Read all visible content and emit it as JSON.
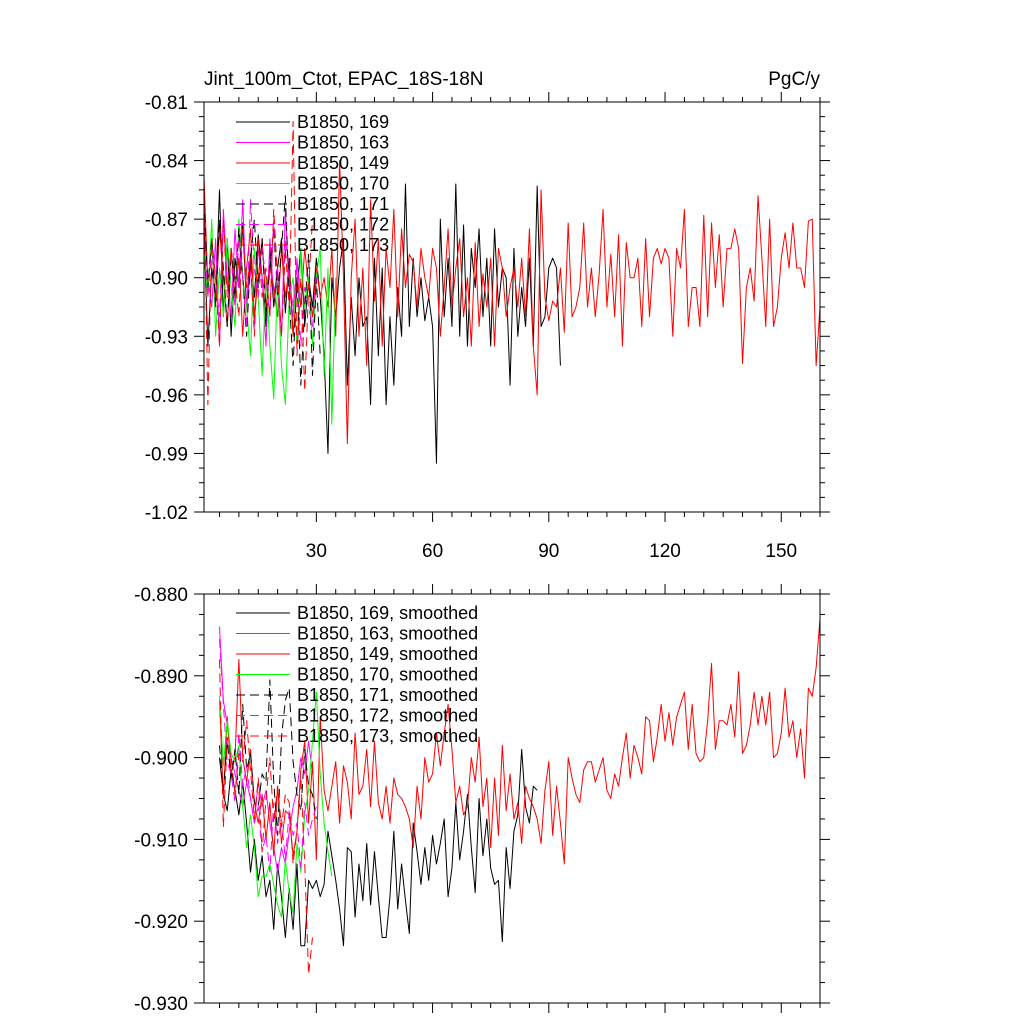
{
  "chart_data": [
    {
      "type": "line",
      "title": "Jint_100m_Ctot, EPAC_18S-18N",
      "units_label": "PgC/y",
      "xlabel": "",
      "ylabel": "",
      "xlim": [
        1,
        160
      ],
      "ylim": [
        -1.02,
        -0.81
      ],
      "xticks": [
        30,
        60,
        90,
        120,
        150
      ],
      "yticks": [
        -1.02,
        -0.99,
        -0.96,
        -0.93,
        -0.9,
        -0.87,
        -0.84,
        -0.81
      ],
      "ytick_labels": [
        "-1.02",
        "-0.99",
        "-0.96",
        "-0.93",
        "-0.90",
        "-0.87",
        "-0.84",
        "-0.81"
      ],
      "show_xtick_labels": true,
      "grid": false,
      "legend_position": "top-left",
      "series": [
        {
          "name": "B1850, 169",
          "color": "#000000",
          "dash": "solid",
          "x_start": 1,
          "values": [
            -0.876,
            -0.935,
            -0.895,
            -0.912,
            -0.855,
            -0.92,
            -0.88,
            -0.93,
            -0.89,
            -0.905,
            -0.872,
            -0.915,
            -0.888,
            -0.91,
            -0.878,
            -0.9,
            -0.925,
            -0.885,
            -0.915,
            -0.895,
            -0.88,
            -0.918,
            -0.89,
            -0.93,
            -0.905,
            -0.885,
            -0.925,
            -0.9,
            -0.915,
            -0.89,
            -0.91,
            -0.94,
            -0.99,
            -0.9,
            -0.92,
            -0.895,
            -0.88,
            -0.955,
            -0.91,
            -0.94,
            -0.9,
            -0.925,
            -0.92,
            -0.965,
            -0.89,
            -0.94,
            -0.895,
            -0.965,
            -0.92,
            -0.955,
            -0.905,
            -0.93,
            -0.852,
            -0.925,
            -0.89,
            -0.92,
            -0.9,
            -0.922,
            -0.91,
            -0.925,
            -0.995,
            -0.87,
            -0.92,
            -0.89,
            -0.925,
            -0.852,
            -0.93,
            -0.873,
            -0.935,
            -0.885,
            -0.905,
            -0.875,
            -0.92,
            -0.89,
            -0.935,
            -0.875,
            -0.915,
            -0.895,
            -0.9,
            -0.955,
            -0.885,
            -0.93,
            -0.905,
            -0.925,
            -0.89,
            -0.935,
            -0.853,
            -0.925,
            -0.92,
            -0.895,
            -0.89,
            -0.895,
            -0.945
          ]
        },
        {
          "name": "B1850, 163",
          "color": "#ff00ff",
          "dash": "solid",
          "x_start": 1,
          "values": [
            -0.87,
            -0.9,
            -0.915,
            -0.88,
            -0.935,
            -0.865,
            -0.9,
            -0.92,
            -0.875,
            -0.905,
            -0.86,
            -0.915,
            -0.895,
            -0.925,
            -0.885,
            -0.9,
            -0.935,
            -0.88,
            -0.91,
            -0.895,
            -0.93,
            -0.865,
            -0.905,
            -0.92,
            -0.89,
            -0.915
          ]
        },
        {
          "name": "B1850, 149",
          "color": "#ff0000",
          "dash": "solid",
          "x_start": 1,
          "values": [
            -0.848,
            -0.905,
            -0.88,
            -0.915,
            -0.875,
            -0.9,
            -0.925,
            -0.885,
            -0.91,
            -0.89,
            -0.93,
            -0.895,
            -0.875,
            -0.92,
            -0.9,
            -0.88,
            -0.915,
            -0.895,
            -0.905,
            -0.92,
            -0.885,
            -0.91,
            -0.895,
            -0.93,
            -0.9,
            -0.915,
            -0.885,
            -0.905,
            -0.92,
            -0.895,
            -0.91,
            -0.9,
            -0.915,
            -0.885,
            -0.93,
            -0.84,
            -0.9,
            -0.985,
            -0.9,
            -0.87,
            -0.93,
            -0.895,
            -0.945,
            -0.86,
            -0.912,
            -0.88,
            -0.935,
            -0.885,
            -0.905,
            -0.865,
            -0.92,
            -0.875,
            -0.905,
            -0.888,
            -0.892,
            -0.915,
            -0.885,
            -0.9,
            -0.91,
            -0.885,
            -0.895,
            -0.93,
            -0.905,
            -0.875,
            -0.915,
            -0.895,
            -0.88,
            -0.92,
            -0.9,
            -0.935,
            -0.882,
            -0.925,
            -0.898,
            -0.915,
            -0.89,
            -0.935,
            -0.885,
            -0.895,
            -0.92,
            -0.905,
            -0.895,
            -0.915,
            -0.89,
            -0.92,
            -0.875,
            -0.935,
            -0.96,
            -0.855,
            -0.91,
            -0.922,
            -0.912,
            -0.915,
            -0.895,
            -0.928,
            -0.872,
            -0.92,
            -0.915,
            -0.905,
            -0.872,
            -0.915,
            -0.895,
            -0.92,
            -0.898,
            -0.865,
            -0.915,
            -0.888,
            -0.92,
            -0.878,
            -0.935,
            -0.882,
            -0.9,
            -0.9,
            -0.89,
            -0.925,
            -0.88,
            -0.92,
            -0.89,
            -0.885,
            -0.893,
            -0.885,
            -0.89,
            -0.93,
            -0.885,
            -0.895,
            -0.865,
            -0.925,
            -0.905,
            -0.905,
            -0.925,
            -0.868,
            -0.92,
            -0.872,
            -0.905,
            -0.878,
            -0.915,
            -0.885,
            -0.885,
            -0.875,
            -0.885,
            -0.944,
            -0.905,
            -0.895,
            -0.912,
            -0.858,
            -0.89,
            -0.925,
            -0.87,
            -0.925,
            -0.915,
            -0.89,
            -0.877,
            -0.895,
            -0.872,
            -0.895,
            -0.895,
            -0.905,
            -0.871,
            -0.87,
            -0.945,
            -0.915,
            -0.896
          ]
        },
        {
          "name": "B1850, 170",
          "color": "#00ff00",
          "dash": "solid",
          "x_start": 1,
          "values": [
            -0.885,
            -0.91,
            -0.87,
            -0.93,
            -0.895,
            -0.92,
            -0.88,
            -0.905,
            -0.925,
            -0.87,
            -0.9,
            -0.915,
            -0.94,
            -0.885,
            -0.91,
            -0.95,
            -0.9,
            -0.935,
            -0.962,
            -0.9,
            -0.945,
            -0.965,
            -0.91,
            -0.9,
            -0.935,
            -0.885,
            -0.915,
            -0.9,
            -0.935,
            -0.9,
            -0.885,
            -0.95,
            -0.895,
            -0.975,
            -0.9
          ]
        },
        {
          "name": "B1850, 171",
          "color": "#000000",
          "dash": "dashed",
          "x_start": 1,
          "values": [
            -0.86,
            -0.905,
            -0.88,
            -0.915,
            -0.87,
            -0.895,
            -0.925,
            -0.885,
            -0.91,
            -0.875,
            -0.9,
            -0.93,
            -0.89,
            -0.87,
            -0.905,
            -0.88,
            -0.92,
            -0.895,
            -0.875,
            -0.91,
            -0.885,
            -0.858,
            -0.91,
            -0.945,
            -0.9,
            -0.955,
            -0.915,
            -0.888,
            -0.95,
            -0.9,
            -0.94
          ]
        },
        {
          "name": "B1850, 172",
          "color": "#ff00ff",
          "dash": "dashed",
          "x_start": 1,
          "values": [
            -0.875,
            -0.91,
            -0.885,
            -0.9,
            -0.92,
            -0.87,
            -0.905,
            -0.89,
            -0.915,
            -0.88,
            -0.9,
            -0.925,
            -0.86,
            -0.895,
            -0.91,
            -0.885,
            -0.9,
            -0.92,
            -0.87,
            -0.905,
            -0.93,
            -0.88,
            -0.9,
            -0.915,
            -0.895,
            -0.935,
            -0.905,
            -0.915,
            -0.925,
            -0.9
          ]
        },
        {
          "name": "B1850, 173",
          "color": "#ff0000",
          "dash": "dashed",
          "x_start": 1,
          "values": [
            -0.855,
            -0.965,
            -0.88,
            -0.9,
            -0.935,
            -0.87,
            -0.91,
            -0.885,
            -0.9,
            -0.92,
            -0.875,
            -0.905,
            -0.89,
            -0.93,
            -0.88,
            -0.91,
            -0.895,
            -0.92,
            -0.865,
            -0.9,
            -0.93,
            -0.885,
            -0.915,
            -0.82,
            -0.94,
            -0.9,
            -0.958,
            -0.905,
            -0.87
          ]
        }
      ]
    },
    {
      "type": "line",
      "title": "",
      "xlabel": "",
      "ylabel": "",
      "xlim": [
        1,
        160
      ],
      "ylim": [
        -0.93,
        -0.88
      ],
      "xticks": [
        30,
        60,
        90,
        120,
        150
      ],
      "yticks": [
        -0.93,
        -0.92,
        -0.91,
        -0.9,
        -0.89,
        -0.88
      ],
      "ytick_labels": [
        "-0.930",
        "-0.920",
        "-0.910",
        "-0.900",
        "-0.890",
        "-0.880"
      ],
      "show_xtick_labels": false,
      "grid": false,
      "legend_position": "top-left",
      "series": [
        {
          "name": "B1850, 169, smoothed",
          "color": "#000000",
          "dash": "solid",
          "x_start": 5,
          "values": [
            -0.9,
            -0.9045,
            -0.9065,
            -0.9015,
            -0.904,
            -0.907,
            -0.903,
            -0.908,
            -0.914,
            -0.91,
            -0.915,
            -0.912,
            -0.917,
            -0.915,
            -0.921,
            -0.913,
            -0.917,
            -0.922,
            -0.916,
            -0.921,
            -0.913,
            -0.923,
            -0.923,
            -0.915,
            -0.916,
            -0.915,
            -0.917,
            -0.9155,
            -0.909,
            -0.912,
            -0.915,
            -0.9185,
            -0.923,
            -0.911,
            -0.9115,
            -0.9195,
            -0.913,
            -0.9175,
            -0.9105,
            -0.918,
            -0.9115,
            -0.917,
            -0.922,
            -0.922,
            -0.917,
            -0.909,
            -0.9185,
            -0.913,
            -0.9175,
            -0.9215,
            -0.908,
            -0.9115,
            -0.9155,
            -0.911,
            -0.915,
            -0.9095,
            -0.913,
            -0.9105,
            -0.9075,
            -0.917,
            -0.9135,
            -0.9055,
            -0.9125,
            -0.909,
            -0.9045,
            -0.911,
            -0.9165,
            -0.905,
            -0.912,
            -0.9075,
            -0.9135,
            -0.9155,
            -0.915,
            -0.9225,
            -0.911,
            -0.916,
            -0.909,
            -0.907,
            -0.899,
            -0.906,
            -0.908,
            -0.9035,
            -0.904
          ]
        },
        {
          "name": "B1850, 163, smoothed",
          "color": "#ff00ff",
          "dash": "solid",
          "x_start": 5,
          "values": [
            -0.884,
            -0.893,
            -0.896,
            -0.9,
            -0.902,
            -0.904,
            -0.906,
            -0.903,
            -0.905,
            -0.908,
            -0.903,
            -0.906,
            -0.904,
            -0.908,
            -0.911,
            -0.914,
            -0.911,
            -0.913,
            -0.909,
            -0.906,
            -0.904,
            -0.9,
            -0.902,
            -0.898,
            -0.902
          ]
        },
        {
          "name": "B1850, 149, smoothed",
          "color": "#ff0000",
          "dash": "solid",
          "x_start": 5,
          "values": [
            -0.893,
            -0.905,
            -0.895,
            -0.902,
            -0.9,
            -0.888,
            -0.9,
            -0.903,
            -0.899,
            -0.9055,
            -0.908,
            -0.9045,
            -0.91,
            -0.9055,
            -0.912,
            -0.9035,
            -0.9105,
            -0.9065,
            -0.907,
            -0.912,
            -0.909,
            -0.9015,
            -0.898,
            -0.908,
            -0.9005,
            -0.9125,
            -0.895,
            -0.904,
            -0.9065,
            -0.9035,
            -0.9005,
            -0.908,
            -0.901,
            -0.903,
            -0.9075,
            -0.897,
            -0.9045,
            -0.9035,
            -0.899,
            -0.906,
            -0.898,
            -0.9055,
            -0.9075,
            -0.9035,
            -0.908,
            -0.9025,
            -0.9045,
            -0.905,
            -0.906,
            -0.9075,
            -0.911,
            -0.9035,
            -0.9075,
            -0.9,
            -0.903,
            -0.902,
            -0.897,
            -0.901,
            -0.897,
            -0.8935,
            -0.899,
            -0.9055,
            -0.9035,
            -0.907,
            -0.906,
            -0.9,
            -0.903,
            -0.8975,
            -0.906,
            -0.9025,
            -0.911,
            -0.9025,
            -0.9095,
            -0.8985,
            -0.9065,
            -0.902,
            -0.9075,
            -0.9055,
            -0.9105,
            -0.9035,
            -0.905,
            -0.906,
            -0.9075,
            -0.9105,
            -0.904,
            -0.9005,
            -0.9095,
            -0.9035,
            -0.908,
            -0.913,
            -0.9,
            -0.9025,
            -0.9045,
            -0.9055,
            -0.9015,
            -0.9005,
            -0.9005,
            -0.903,
            -0.9015,
            -0.9,
            -0.904,
            -0.905,
            -0.902,
            -0.9035,
            -0.9,
            -0.897,
            -0.9025,
            -0.8985,
            -0.9,
            -0.902,
            -0.895,
            -0.8955,
            -0.9005,
            -0.8975,
            -0.8935,
            -0.898,
            -0.8945,
            -0.8985,
            -0.895,
            -0.8935,
            -0.892,
            -0.899,
            -0.8935,
            -0.8995,
            -0.9005,
            -0.9,
            -0.8955,
            -0.8885,
            -0.899,
            -0.8955,
            -0.8955,
            -0.896,
            -0.8935,
            -0.8975,
            -0.8895,
            -0.8995,
            -0.8985,
            -0.896,
            -0.892,
            -0.896,
            -0.8925,
            -0.896,
            -0.892,
            -0.9,
            -0.8995,
            -0.897,
            -0.8915,
            -0.8975,
            -0.8955,
            -0.9,
            -0.8965,
            -0.9025,
            -0.8915,
            -0.8925,
            -0.889,
            -0.883,
            -0.8895,
            -0.8985,
            -0.9005
          ]
        },
        {
          "name": "B1850, 170, smoothed",
          "color": "#00ff00",
          "dash": "solid",
          "x_start": 5,
          "values": [
            -0.8925,
            -0.901,
            -0.8955,
            -0.8995,
            -0.9005,
            -0.8985,
            -0.906,
            -0.911,
            -0.907,
            -0.911,
            -0.917,
            -0.9145,
            -0.9145,
            -0.913,
            -0.9155,
            -0.918,
            -0.9195,
            -0.9125,
            -0.9165,
            -0.919,
            -0.9105,
            -0.914,
            -0.907,
            -0.904,
            -0.898,
            -0.892,
            -0.902,
            -0.908,
            -0.9115,
            -0.9145
          ]
        },
        {
          "name": "B1850, 171, smoothed",
          "color": "#000000",
          "dash": "dashed",
          "x_start": 5,
          "values": [
            -0.8985,
            -0.904,
            -0.898,
            -0.9025,
            -0.899,
            -0.9045,
            -0.8935,
            -0.9015,
            -0.8995,
            -0.9055,
            -0.906,
            -0.902,
            -0.903,
            -0.8905,
            -0.903,
            -0.9095,
            -0.8975,
            -0.893,
            -0.8915,
            -0.9005,
            -0.9045,
            -0.9065,
            -0.899,
            -0.9035,
            -0.9045,
            -0.9075
          ]
        },
        {
          "name": "B1850, 172, smoothed",
          "color": "#ff00ff",
          "dash": "dashed",
          "x_start": 5,
          "values": [
            -0.8855,
            -0.8935,
            -0.9005,
            -0.902,
            -0.9055,
            -0.897,
            -0.9035,
            -0.901,
            -0.905,
            -0.908,
            -0.906,
            -0.9115,
            -0.9095,
            -0.914,
            -0.9055,
            -0.9105,
            -0.9075,
            -0.9125,
            -0.9065,
            -0.9095,
            -0.908,
            -0.9135,
            -0.9055,
            -0.9095,
            -0.9075,
            -0.906
          ]
        },
        {
          "name": "B1850, 173, smoothed",
          "color": "#ff0000",
          "dash": "dashed",
          "x_start": 5,
          "values": [
            -0.888,
            -0.9085,
            -0.8975,
            -0.9,
            -0.9045,
            -0.8995,
            -0.9005,
            -0.8955,
            -0.9015,
            -0.9075,
            -0.9025,
            -0.9115,
            -0.905,
            -0.9,
            -0.908,
            -0.9035,
            -0.9085,
            -0.9045,
            -0.9055,
            -0.913,
            -0.909,
            -0.9025,
            -0.913,
            -0.9265,
            -0.922
          ]
        }
      ]
    }
  ]
}
